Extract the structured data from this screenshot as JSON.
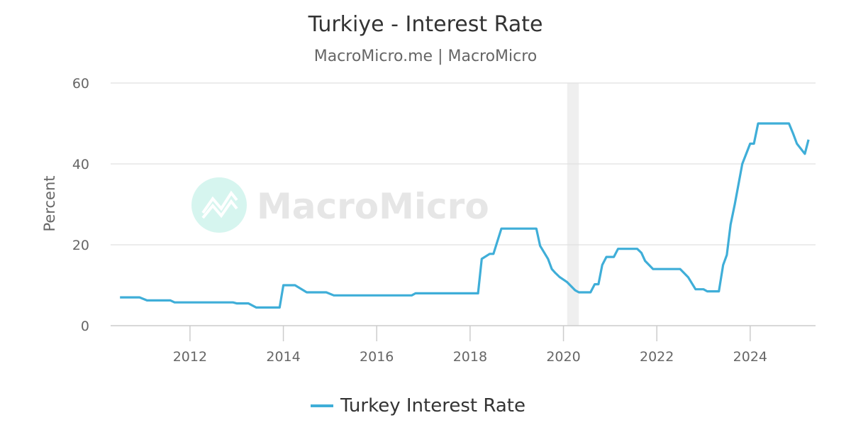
{
  "chart_data": {
    "type": "line",
    "title": "Turkiye - Interest Rate",
    "subtitle": "MacroMicro.me | MacroMicro",
    "ylabel": "Percent",
    "xlabel": "",
    "xlim": [
      2010.3,
      2025.4
    ],
    "ylim": [
      0,
      60
    ],
    "y_ticks": [
      0,
      20,
      40,
      60
    ],
    "x_ticks": [
      2012,
      2014,
      2016,
      2018,
      2020,
      2022,
      2024
    ],
    "grid": "horizontal",
    "legend_position": "bottom",
    "recession_band": [
      2020.08,
      2020.33
    ],
    "watermark": "MacroMicro",
    "colors": {
      "series": "#3faed8",
      "grid": "#e0e0e0",
      "band": "#efefef",
      "watermark_icon": "#d6f5ef"
    },
    "series": [
      {
        "name": "Turkey Interest Rate",
        "points": [
          [
            2010.5,
            7.0
          ],
          [
            2010.92,
            7.0
          ],
          [
            2011.08,
            6.25
          ],
          [
            2011.58,
            6.25
          ],
          [
            2011.67,
            5.75
          ],
          [
            2012.92,
            5.75
          ],
          [
            2013.0,
            5.5
          ],
          [
            2013.25,
            5.5
          ],
          [
            2013.42,
            4.5
          ],
          [
            2013.92,
            4.5
          ],
          [
            2014.0,
            10.0
          ],
          [
            2014.25,
            10.0
          ],
          [
            2014.5,
            8.25
          ],
          [
            2014.92,
            8.25
          ],
          [
            2015.08,
            7.5
          ],
          [
            2016.75,
            7.5
          ],
          [
            2016.83,
            8.0
          ],
          [
            2018.17,
            8.0
          ],
          [
            2018.25,
            16.5
          ],
          [
            2018.42,
            17.75
          ],
          [
            2018.5,
            17.75
          ],
          [
            2018.67,
            24.0
          ],
          [
            2019.42,
            24.0
          ],
          [
            2019.5,
            19.75
          ],
          [
            2019.67,
            16.5
          ],
          [
            2019.75,
            14.0
          ],
          [
            2019.83,
            13.0
          ],
          [
            2019.92,
            12.0
          ],
          [
            2020.08,
            10.75
          ],
          [
            2020.25,
            8.75
          ],
          [
            2020.33,
            8.25
          ],
          [
            2020.58,
            8.25
          ],
          [
            2020.67,
            10.25
          ],
          [
            2020.75,
            10.25
          ],
          [
            2020.83,
            15.0
          ],
          [
            2020.92,
            17.0
          ],
          [
            2021.08,
            17.0
          ],
          [
            2021.17,
            19.0
          ],
          [
            2021.58,
            19.0
          ],
          [
            2021.67,
            18.0
          ],
          [
            2021.75,
            16.0
          ],
          [
            2021.92,
            14.0
          ],
          [
            2022.5,
            14.0
          ],
          [
            2022.67,
            12.0
          ],
          [
            2022.83,
            9.0
          ],
          [
            2023.0,
            9.0
          ],
          [
            2023.08,
            8.5
          ],
          [
            2023.33,
            8.5
          ],
          [
            2023.42,
            15.0
          ],
          [
            2023.5,
            17.5
          ],
          [
            2023.58,
            25.0
          ],
          [
            2023.67,
            30.0
          ],
          [
            2023.83,
            40.0
          ],
          [
            2024.0,
            45.0
          ],
          [
            2024.08,
            45.0
          ],
          [
            2024.17,
            50.0
          ],
          [
            2024.83,
            50.0
          ],
          [
            2024.92,
            47.5
          ],
          [
            2025.0,
            45.0
          ],
          [
            2025.17,
            42.5
          ],
          [
            2025.25,
            46.0
          ]
        ]
      }
    ]
  }
}
